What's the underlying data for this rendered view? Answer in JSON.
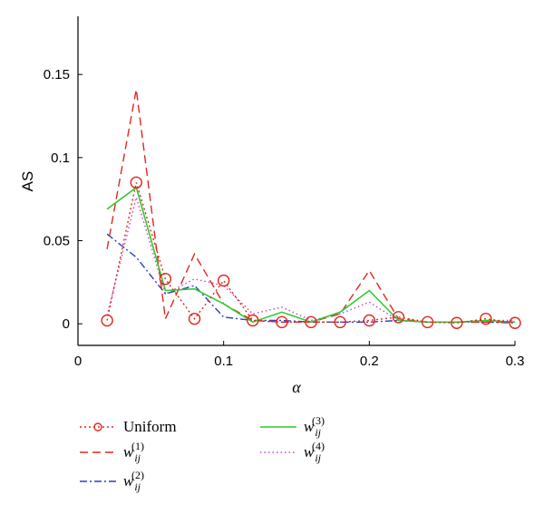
{
  "chart_data": {
    "type": "line",
    "xlabel": "α",
    "ylabel": "AS",
    "xlim": [
      0,
      0.3
    ],
    "ylim": [
      -0.013,
      0.185
    ],
    "xticks": [
      0,
      0.1,
      0.2,
      0.3
    ],
    "xtick_labels": [
      "0",
      "0.1",
      "0.2",
      "0.3"
    ],
    "yticks": [
      0,
      0.05,
      0.1,
      0.15
    ],
    "ytick_labels": [
      "0",
      "0.05",
      "0.1",
      "0.15"
    ],
    "grid": false,
    "legend_position": "bottom",
    "x": [
      0.02,
      0.04,
      0.06,
      0.08,
      0.1,
      0.12,
      0.14,
      0.16,
      0.18,
      0.2,
      0.22,
      0.24,
      0.26,
      0.28,
      0.3
    ],
    "series": [
      {
        "name": "Uniform",
        "name_parts": {
          "base": "Uniform",
          "sub": "",
          "sup": ""
        },
        "color": "#e0271e",
        "dash": "2,3",
        "marker": "circle",
        "values": [
          0.002,
          0.085,
          0.027,
          0.003,
          0.026,
          0.002,
          0.001,
          0.001,
          0.001,
          0.002,
          0.004,
          0.001,
          0.0005,
          0.003,
          0.0005
        ]
      },
      {
        "name": "w_ij^(1)",
        "name_parts": {
          "base": "w",
          "sub": "ij",
          "sup": "(1)"
        },
        "color": "#e0271e",
        "dash": "9,5",
        "marker": "none",
        "values": [
          0.045,
          0.141,
          0.003,
          0.042,
          0.012,
          0.002,
          0.001,
          0.001,
          0.006,
          0.032,
          0.003,
          0.001,
          0.001,
          0.001,
          0.001
        ]
      },
      {
        "name": "w_ij^(2)",
        "name_parts": {
          "base": "w",
          "sub": "ij",
          "sup": "(2)"
        },
        "color": "#2a3fc5",
        "dash": "8,3,2,3",
        "marker": "none",
        "values": [
          0.054,
          0.04,
          0.018,
          0.023,
          0.004,
          0.002,
          0.002,
          0.001,
          0.001,
          0.001,
          0.002,
          0.001,
          0.001,
          0.001,
          0.0005
        ]
      },
      {
        "name": "w_ij^(3)",
        "name_parts": {
          "base": "w",
          "sub": "ij",
          "sup": "(3)"
        },
        "color": "#2ecc2e",
        "dash": "",
        "marker": "none",
        "values": [
          0.069,
          0.082,
          0.02,
          0.021,
          0.012,
          0.001,
          0.007,
          0.001,
          0.007,
          0.02,
          0.002,
          0.001,
          0.001,
          0.002,
          0.001
        ]
      },
      {
        "name": "w_ij^(4)",
        "name_parts": {
          "base": "w",
          "sub": "ij",
          "sup": "(4)"
        },
        "color": "#cf3cc8",
        "dash": "1.5,3",
        "marker": "none",
        "values": [
          0.005,
          0.076,
          0.018,
          0.027,
          0.023,
          0.006,
          0.01,
          0.002,
          0.006,
          0.013,
          0.002,
          0.001,
          0.001,
          0.002,
          0.002
        ]
      }
    ]
  }
}
